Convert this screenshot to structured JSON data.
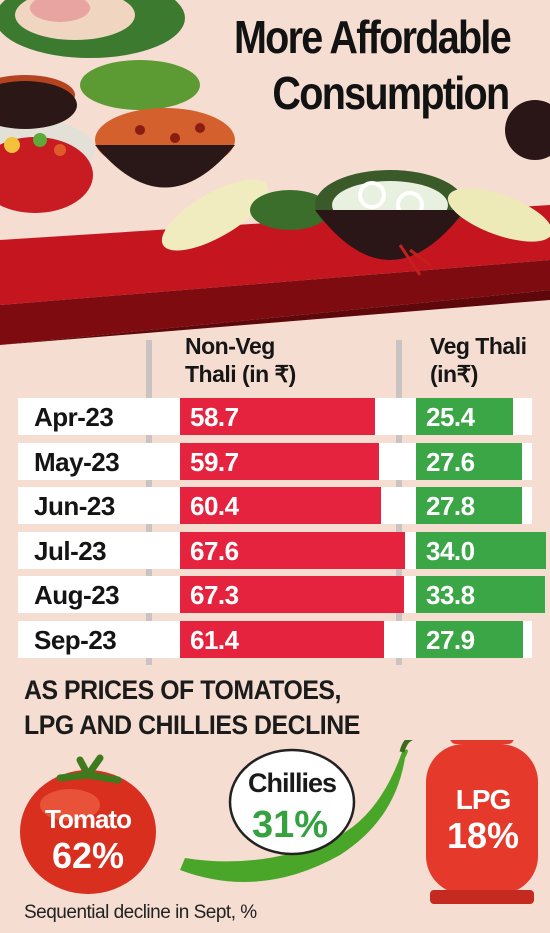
{
  "header": {
    "title_line1": "More Affordable",
    "title_line2": "Consumption"
  },
  "table": {
    "nonveg_header": "Non-Veg\nThali (in ₹)",
    "veg_header": "Veg Thali\n(in₹)"
  },
  "chart_data": {
    "type": "bar",
    "categories": [
      "Apr-23",
      "May-23",
      "Jun-23",
      "Jul-23",
      "Aug-23",
      "Sep-23"
    ],
    "series": [
      {
        "name": "Non-Veg Thali (in ₹)",
        "values": [
          58.7,
          59.7,
          60.4,
          67.6,
          67.3,
          61.4
        ],
        "labels": [
          "58.7",
          "59.7",
          "60.4",
          "67.6",
          "67.3",
          "61.4"
        ],
        "color": "#e6233e"
      },
      {
        "name": "Veg Thali (in₹)",
        "values": [
          25.4,
          27.6,
          27.8,
          34.0,
          33.8,
          27.9
        ],
        "labels": [
          "25.4",
          "27.6",
          "27.8",
          "34.0",
          "33.8",
          "27.9"
        ],
        "color": "#3aa646"
      }
    ]
  },
  "subheading": "AS PRICES OF TOMATOES,\nLPG AND CHILLIES DECLINE",
  "declines": {
    "tomato": {
      "name": "Tomato",
      "percent": "62%",
      "value": 62
    },
    "chillies": {
      "name": "Chillies",
      "percent": "31%",
      "value": 31
    },
    "lpg": {
      "name": "LPG",
      "percent": "18%",
      "value": 18
    }
  },
  "footnote": "Sequential decline in Sept, %",
  "colors": {
    "background": "#f6ddd2",
    "nonveg_bar": "#e6233e",
    "veg_bar": "#3aa646",
    "table_dark": "#8b0f16",
    "table_red": "#b3161f"
  }
}
